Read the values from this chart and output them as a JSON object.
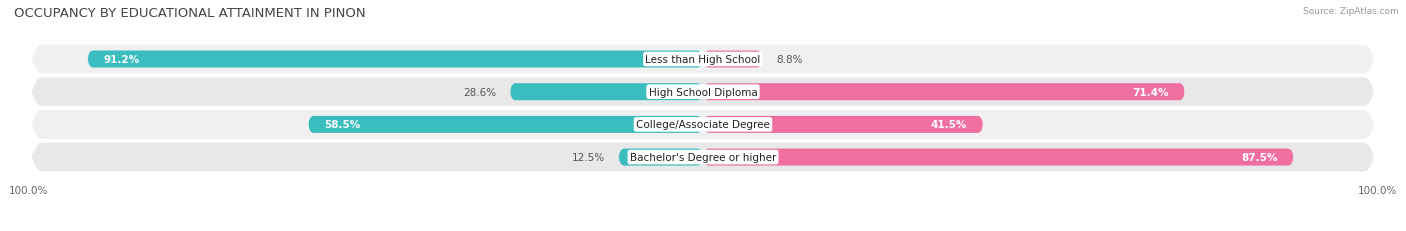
{
  "title": "OCCUPANCY BY EDUCATIONAL ATTAINMENT IN PINON",
  "source": "Source: ZipAtlas.com",
  "categories": [
    "Less than High School",
    "High School Diploma",
    "College/Associate Degree",
    "Bachelor's Degree or higher"
  ],
  "owner_values": [
    91.2,
    28.6,
    58.5,
    12.5
  ],
  "renter_values": [
    8.8,
    71.4,
    41.5,
    87.5
  ],
  "owner_color": "#3bbcbe",
  "renter_color": "#f06fa0",
  "owner_color_light": "#a8d8d8",
  "renter_color_light": "#f9bdd3",
  "row_bg_odd": "#f0f0f0",
  "row_bg_even": "#e8e8e8",
  "title_fontsize": 9.5,
  "source_fontsize": 6.5,
  "label_fontsize": 7.5,
  "value_fontsize": 7.5,
  "tick_fontsize": 7.5,
  "bar_height": 0.52
}
